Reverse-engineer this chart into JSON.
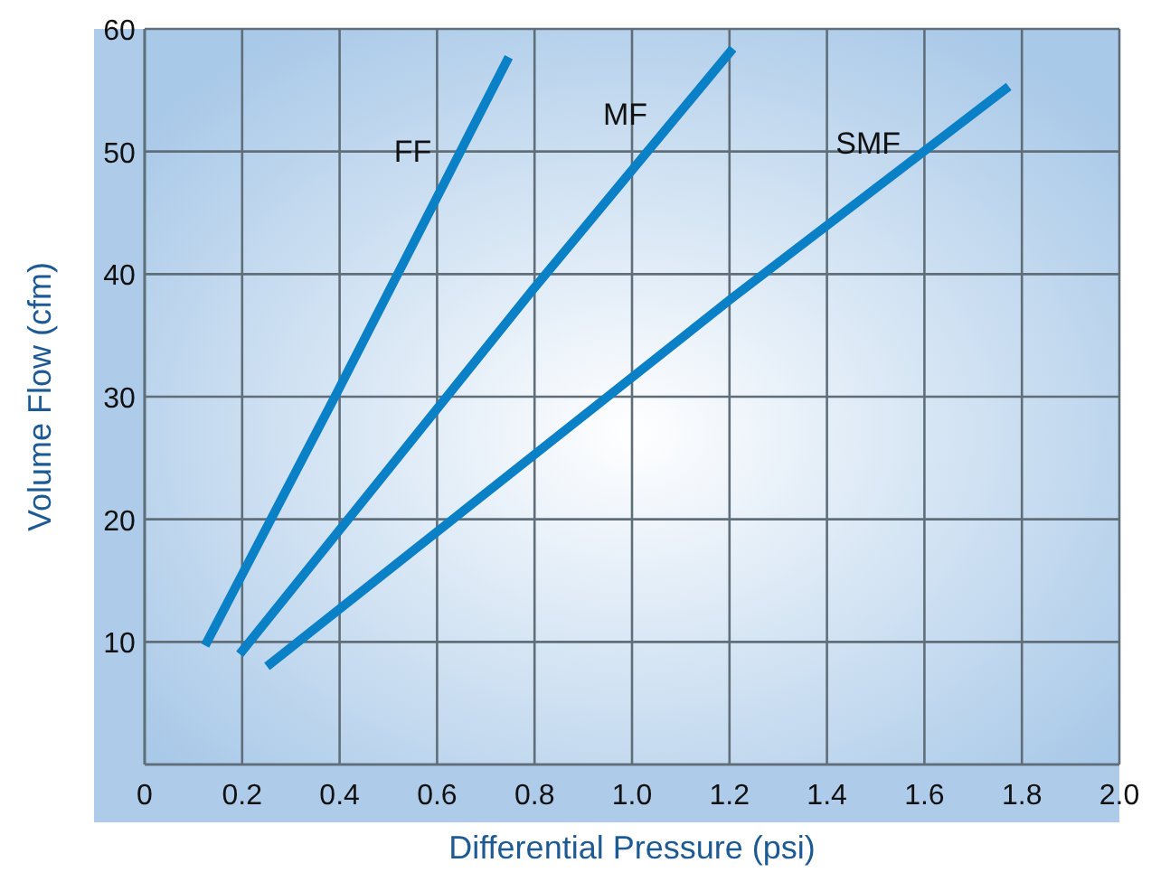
{
  "chart_data": {
    "type": "line",
    "xlabel": "Differential Pressure (psi)",
    "ylabel": "Volume Flow (cfm)",
    "xlim": [
      0,
      2.0
    ],
    "xticks": [
      {
        "value": 0,
        "label": "0"
      },
      0.2,
      0.4,
      0.6,
      0.8,
      {
        "value": 1,
        "label": "1.0"
      },
      1.2,
      1.4,
      1.6,
      1.8,
      {
        "value": 2,
        "label": "2.0"
      }
    ],
    "ylim": [
      0,
      60
    ],
    "yticks": [
      {
        "value": 0,
        "label": null
      },
      10,
      20,
      30,
      40,
      50,
      60
    ],
    "grid": true,
    "marker": "none",
    "line_style": "solid",
    "series": [
      {
        "name": "FF",
        "color": "#0a80c6",
        "x": [
          0.124,
          0.393,
          0.747
        ],
        "values": [
          9.7,
          30.2,
          57.7
        ]
      },
      {
        "name": "MF",
        "color": "#0a80c6",
        "x": [
          0.195,
          0.796,
          1.207
        ],
        "values": [
          9.0,
          38.7,
          58.4
        ]
      },
      {
        "name": "SMF",
        "color": "#0a80c6",
        "x": [
          0.251,
          1.207,
          1.773
        ],
        "values": [
          8.0,
          38.1,
          55.3
        ]
      }
    ]
  }
}
